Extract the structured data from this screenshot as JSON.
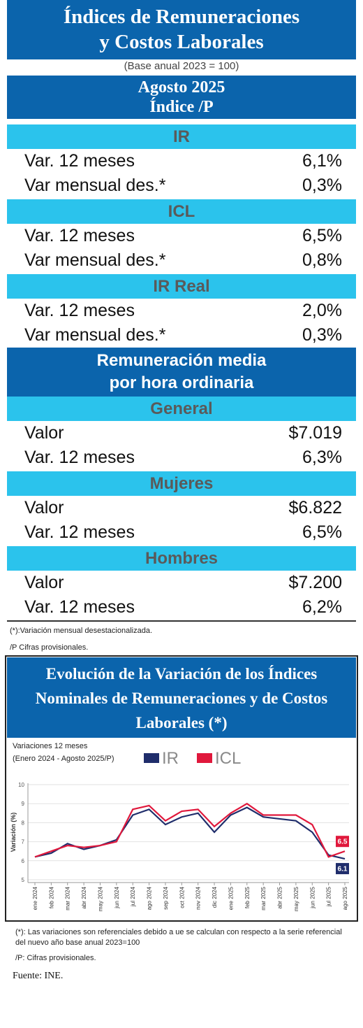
{
  "header": {
    "title": [
      "Índices de Remuneraciones",
      "y Costos Laborales"
    ],
    "base": "(Base anual 2023 = 100)",
    "period": [
      "Agosto 2025",
      "Índice /P"
    ]
  },
  "indices": [
    {
      "name": "IR",
      "rows": [
        [
          "Var. 12 meses",
          "6,1%"
        ],
        [
          "Var mensual des.*",
          "0,3%"
        ]
      ]
    },
    {
      "name": "ICL",
      "rows": [
        [
          "Var. 12 meses",
          "6,5%"
        ],
        [
          "Var mensual des.*",
          "0,8%"
        ]
      ]
    },
    {
      "name": "IR Real",
      "rows": [
        [
          "Var. 12 meses",
          "2,0%"
        ],
        [
          "Var mensual des.*",
          "0,3%"
        ]
      ]
    }
  ],
  "wage": {
    "title": [
      "Remuneración media",
      "por hora ordinaria"
    ],
    "groups": [
      {
        "name": "General",
        "rows": [
          [
            "Valor",
            "$7.019"
          ],
          [
            "Var. 12 meses",
            "6,3%"
          ]
        ]
      },
      {
        "name": "Mujeres",
        "rows": [
          [
            "Valor",
            "$6.822"
          ],
          [
            "Var. 12 meses",
            "6,5%"
          ]
        ]
      },
      {
        "name": "Hombres",
        "rows": [
          [
            "Valor",
            "$7.200"
          ],
          [
            "Var. 12 meses",
            "6,2%"
          ]
        ]
      }
    ]
  },
  "notes": [
    "(*):Variación mensual desestacionalizada.",
    "/P Cifras provisionales."
  ],
  "chart_data": {
    "type": "line",
    "title": [
      "Evolución de la Variación de los Índices",
      "Nominales de Remuneraciones y de Costos",
      "Laborales (*)"
    ],
    "subtitle": [
      "Variaciones 12 meses",
      "(Enero 2024 - Agosto 2025/P)"
    ],
    "ylabel": "Variación (%)",
    "categories": [
      "ene 2024",
      "feb 2024",
      "mar 2024",
      "abr 2024",
      "may 2024",
      "jun 2024",
      "jul 2024",
      "ago 2024",
      "sep 2024",
      "oct 2024",
      "nov 2024",
      "dic 2024",
      "ene 2025",
      "feb 2025",
      "mar 2025",
      "abr 2025",
      "may 2025",
      "jun 2025",
      "jul 2025",
      "ago 2025"
    ],
    "series": [
      {
        "name": "IR",
        "color": "#1f2d6b",
        "values": [
          6.2,
          6.4,
          6.9,
          6.6,
          6.8,
          7.1,
          8.4,
          8.7,
          7.9,
          8.3,
          8.5,
          7.5,
          8.4,
          8.8,
          8.3,
          8.2,
          8.1,
          7.5,
          6.3,
          6.1
        ]
      },
      {
        "name": "ICL",
        "color": "#e0183c",
        "values": [
          6.2,
          6.5,
          6.8,
          6.7,
          6.8,
          7.0,
          8.7,
          8.9,
          8.1,
          8.6,
          8.7,
          7.8,
          8.5,
          9.0,
          8.4,
          8.4,
          8.4,
          7.9,
          6.2,
          6.5
        ]
      }
    ],
    "ylim": [
      5,
      10
    ],
    "yticks": [
      5,
      6,
      7,
      8,
      9,
      10
    ],
    "grid": true
  },
  "footer": {
    "notes": [
      "(*): Las variaciones son referenciales debido a ue se calculan con respecto a la serie referencial del nuevo año base anual 2023=100",
      "/P: Cifras provisionales."
    ],
    "source": "Fuente: INE."
  }
}
